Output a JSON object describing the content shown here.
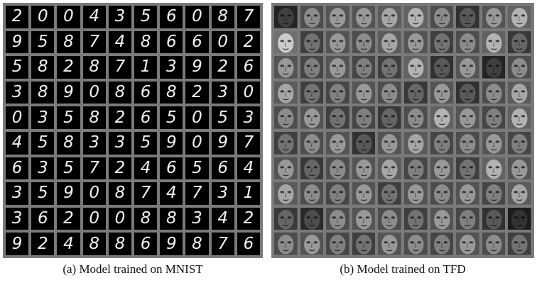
{
  "panel_a": {
    "caption": "(a) Model trained on MNIST",
    "digits": [
      [
        "2",
        "0",
        "0",
        "4",
        "3",
        "5",
        "6",
        "0",
        "8",
        "7"
      ],
      [
        "9",
        "5",
        "8",
        "7",
        "4",
        "8",
        "6",
        "6",
        "0",
        "2"
      ],
      [
        "5",
        "8",
        "2",
        "8",
        "7",
        "1",
        "3",
        "9",
        "2",
        "6"
      ],
      [
        "3",
        "8",
        "9",
        "0",
        "8",
        "6",
        "8",
        "2",
        "3",
        "0"
      ],
      [
        "0",
        "3",
        "5",
        "8",
        "2",
        "6",
        "5",
        "0",
        "5",
        "3"
      ],
      [
        "4",
        "5",
        "8",
        "3",
        "3",
        "5",
        "9",
        "0",
        "9",
        "7"
      ],
      [
        "6",
        "3",
        "5",
        "7",
        "2",
        "4",
        "6",
        "5",
        "6",
        "4"
      ],
      [
        "3",
        "5",
        "9",
        "0",
        "8",
        "7",
        "4",
        "7",
        "3",
        "1"
      ],
      [
        "3",
        "6",
        "2",
        "0",
        "0",
        "8",
        "8",
        "3",
        "4",
        "2"
      ],
      [
        "9",
        "2",
        "4",
        "8",
        "8",
        "6",
        "9",
        "8",
        "7",
        "6"
      ]
    ]
  },
  "panel_b": {
    "caption": "(b) Model trained on TFD",
    "face_brightness": [
      [
        0.25,
        0.55,
        0.6,
        0.6,
        0.65,
        0.7,
        0.55,
        0.35,
        0.6,
        0.7
      ],
      [
        0.8,
        0.45,
        0.6,
        0.55,
        0.65,
        0.6,
        0.45,
        0.55,
        0.7,
        0.4
      ],
      [
        0.6,
        0.5,
        0.6,
        0.5,
        0.45,
        0.7,
        0.35,
        0.6,
        0.25,
        0.55
      ],
      [
        0.65,
        0.45,
        0.5,
        0.6,
        0.55,
        0.4,
        0.6,
        0.35,
        0.55,
        0.65
      ],
      [
        0.55,
        0.6,
        0.45,
        0.5,
        0.4,
        0.55,
        0.7,
        0.6,
        0.5,
        0.7
      ],
      [
        0.45,
        0.55,
        0.6,
        0.35,
        0.6,
        0.65,
        0.5,
        0.55,
        0.6,
        0.5
      ],
      [
        0.6,
        0.4,
        0.55,
        0.6,
        0.65,
        0.5,
        0.6,
        0.45,
        0.7,
        0.6
      ],
      [
        0.65,
        0.55,
        0.5,
        0.6,
        0.45,
        0.6,
        0.55,
        0.6,
        0.5,
        0.65
      ],
      [
        0.4,
        0.3,
        0.55,
        0.6,
        0.55,
        0.45,
        0.6,
        0.5,
        0.35,
        0.2
      ],
      [
        0.55,
        0.6,
        0.5,
        0.45,
        0.6,
        0.55,
        0.5,
        0.6,
        0.55,
        0.45
      ]
    ]
  }
}
